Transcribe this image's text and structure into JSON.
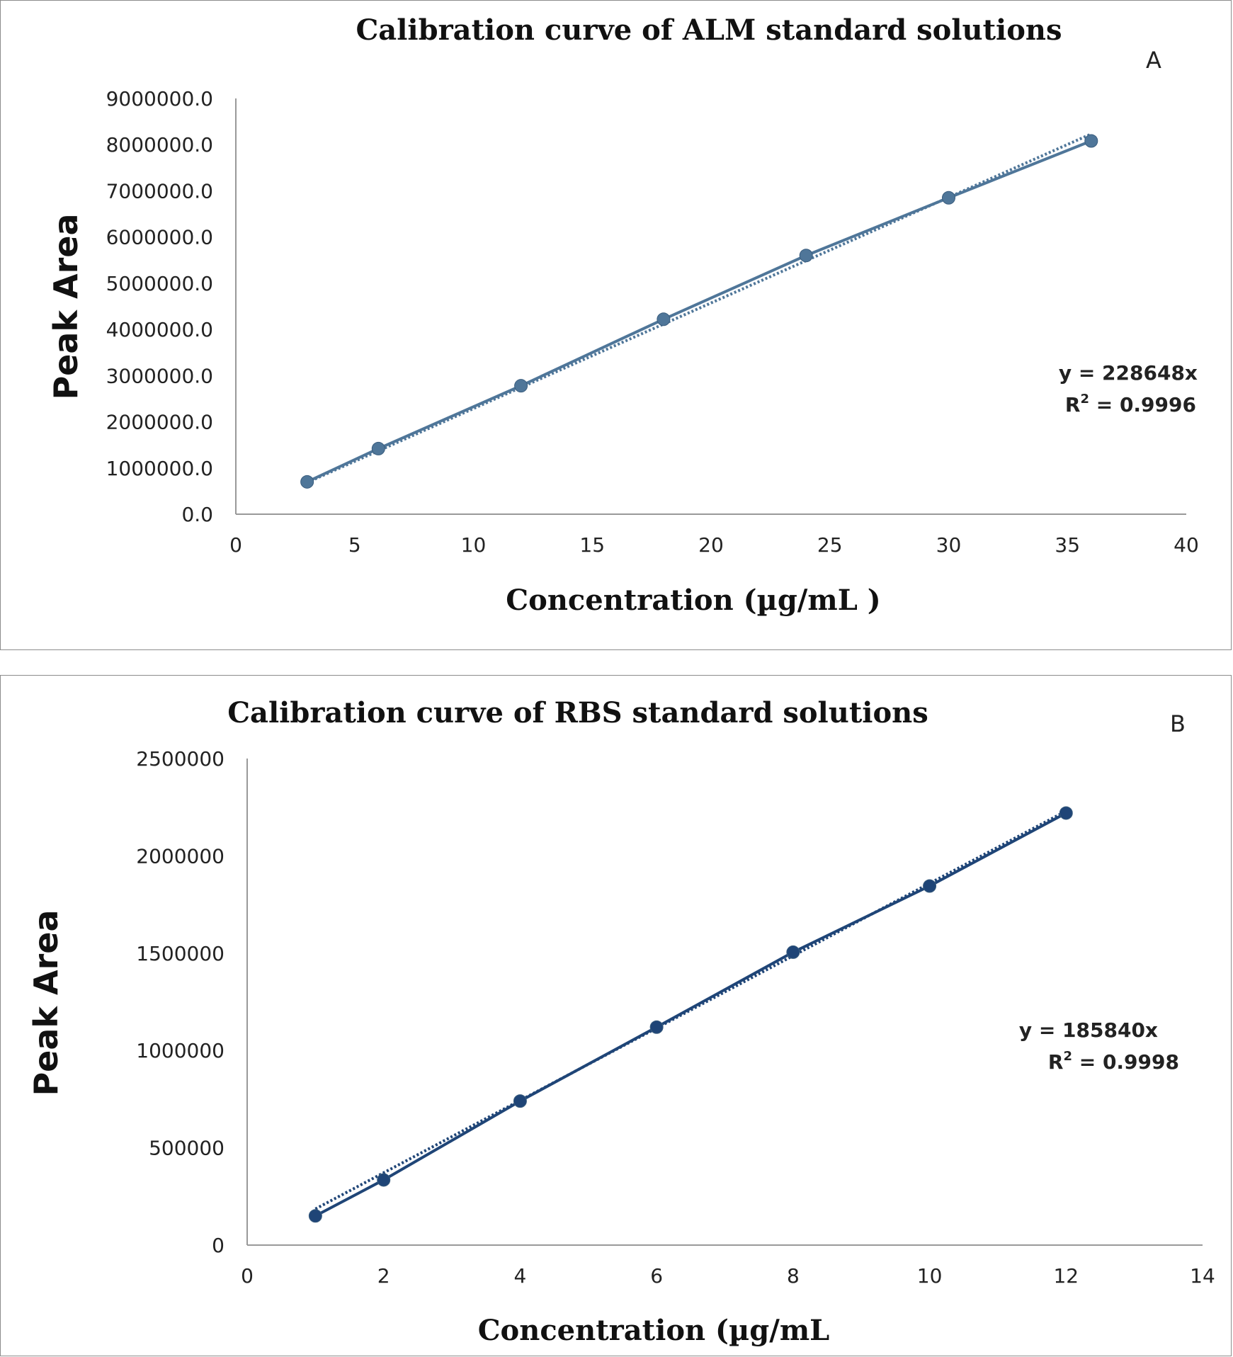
{
  "chart_data": [
    {
      "type": "scatter",
      "panel_label": "A",
      "title": "Calibration curve of  ALM standard solutions",
      "xlabel": "Concentration (µg/mL )",
      "ylabel": "Peak Area",
      "xlim": [
        0,
        40
      ],
      "ylim": [
        0,
        9000000
      ],
      "x_ticks": [
        "0",
        "5",
        "10",
        "15",
        "20",
        "25",
        "30",
        "35",
        "40"
      ],
      "y_ticks": [
        "0.0",
        "1000000.0",
        "2000000.0",
        "3000000.0",
        "4000000.0",
        "5000000.0",
        "6000000.0",
        "7000000.0",
        "8000000.0",
        "9000000.0"
      ],
      "series": [
        {
          "x": [
            3,
            6,
            12,
            18,
            24,
            30,
            36
          ],
          "y": [
            700000,
            1420000,
            2780000,
            4220000,
            5600000,
            6850000,
            8080000
          ]
        }
      ],
      "trendline": {
        "type": "linear-through-origin",
        "slope": 228648,
        "style": "dotted"
      },
      "equation": "y = 228648x",
      "r2_label": "R",
      "r2_sup": "2",
      "r2_value": " = 0.9996",
      "color": "#4f7699",
      "grid": false,
      "legend": "none"
    },
    {
      "type": "scatter",
      "panel_label": "B",
      "title": "Calibration curve of RBS standard solutions",
      "xlabel": "Concentration (µg/mL",
      "ylabel": "Peak Area",
      "xlim": [
        0,
        14
      ],
      "ylim": [
        0,
        2500000
      ],
      "x_ticks": [
        "0",
        "2",
        "4",
        "6",
        "8",
        "10",
        "12",
        "14"
      ],
      "y_ticks": [
        "0",
        "500000",
        "1000000",
        "1500000",
        "2000000",
        "2500000"
      ],
      "series": [
        {
          "x": [
            1,
            2,
            4,
            6,
            8,
            10,
            12
          ],
          "y": [
            150000,
            335000,
            740000,
            1120000,
            1505000,
            1845000,
            2220000
          ]
        }
      ],
      "trendline": {
        "type": "linear-through-origin",
        "slope": 185840,
        "style": "dotted"
      },
      "equation": "y = 185840x",
      "r2_label": "R",
      "r2_sup": "2",
      "r2_value": " = 0.9998",
      "color": "#1f4577",
      "grid": false,
      "legend": "none"
    }
  ]
}
